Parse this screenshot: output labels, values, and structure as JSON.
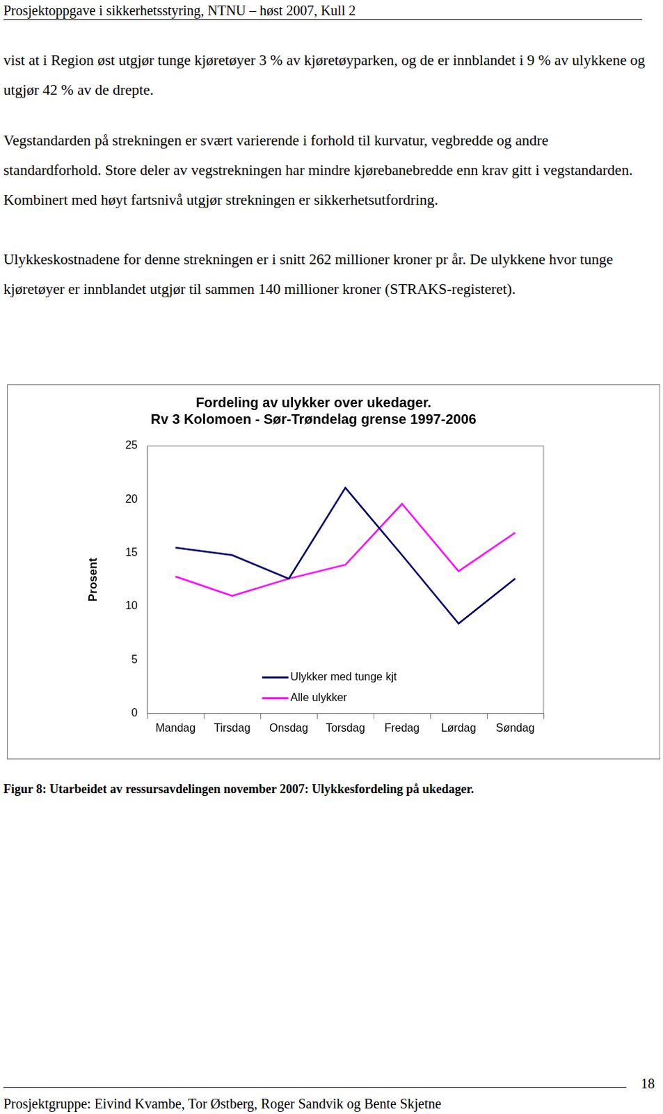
{
  "header": "Prosjektoppgave i sikkerhetsstyring, NTNU – høst 2007, Kull 2",
  "paragraphs": [
    "vist at i Region øst utgjør tunge kjøretøyer 3 % av kjøretøyparken, og de er innblandet i 9 % av ulykkene og utgjør 42 % av de drepte.",
    "Vegstandarden på strekningen er svært varierende i forhold til kurvatur, vegbredde og andre standardforhold. Store deler av vegstrekningen har mindre kjørebanebredde enn krav gitt i vegstandarden. Kombinert med høyt fartsnivå utgjør strekningen er sikkerhetsutfordring.",
    "Ulykkeskostnadene for denne strekningen er i snitt 262 millioner kroner pr år. De ulykkene hvor tunge kjøretøyer er innblandet utgjør til sammen 140 millioner kroner (STRAKS-registeret)."
  ],
  "chart_data": {
    "type": "line",
    "title": [
      "Fordeling av ulykker over ukedager.",
      "Rv 3 Kolomoen - Sør-Trøndelag grense 1997-2006"
    ],
    "y_label": "Prosent",
    "categories": [
      "Mandag",
      "Tirsdag",
      "Onsdag",
      "Torsdag",
      "Fredag",
      "Lørdag",
      "Søndag"
    ],
    "series": [
      {
        "name": "Ulykker med tunge kjt",
        "color": "#000066",
        "values": [
          15.5,
          14.8,
          12.6,
          21.1,
          14.8,
          8.4,
          12.6
        ]
      },
      {
        "name": "Alle ulykker",
        "color": "#ff00ff",
        "values": [
          12.8,
          11.0,
          12.6,
          13.9,
          19.6,
          13.3,
          16.9
        ]
      }
    ],
    "ylim": [
      0,
      25
    ],
    "yticks": [
      0,
      5,
      10,
      15,
      20,
      25
    ],
    "grid": false,
    "legend": "lower center"
  },
  "caption": "Figur 8: Utarbeidet av ressursavdelingen november 2007: Ulykkesfordeling på ukedager.",
  "footer": "Prosjektgruppe: Eivind Kvambe, Tor Østberg, Roger Sandvik og Bente Skjetne",
  "page": 18
}
